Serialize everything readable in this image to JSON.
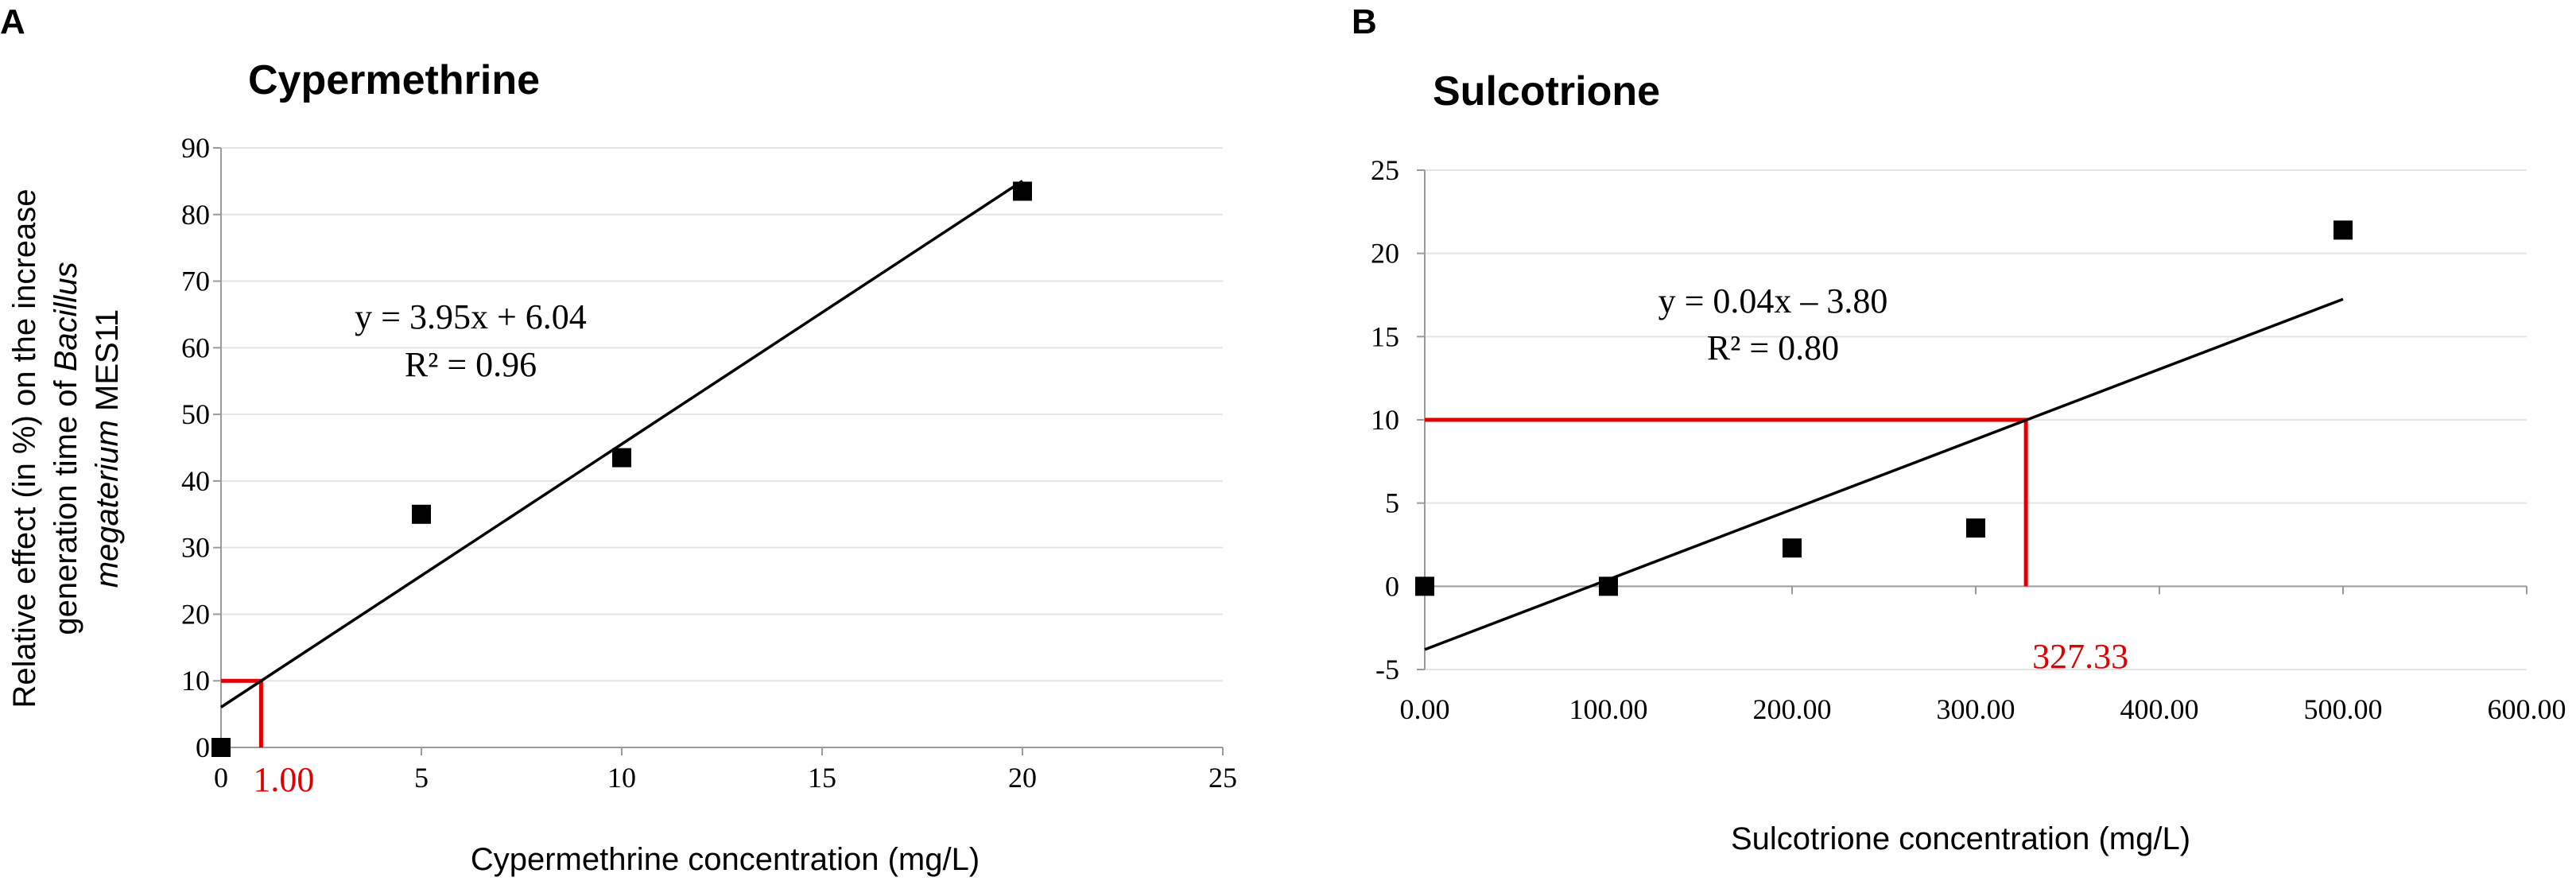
{
  "chart_data": [
    {
      "type": "scatter",
      "panel": "A",
      "title": "Cypermethrine",
      "xlabel": "Cypermethrine concentration (mg/L)",
      "ylabel_parts": [
        {
          "text": "Relative effect (in %) on the increase",
          "italic": false
        },
        {
          "text": "generation time of ",
          "italic": false
        },
        {
          "text": "Bacillus",
          "italic": true
        },
        {
          "text": "megaterium",
          "italic": true
        },
        {
          "text": " MES11",
          "italic": false
        }
      ],
      "ylabel_lines": [
        [
          "Relative effect (in %) on the increase"
        ],
        [
          "generation time of ",
          "Bacillus"
        ],
        [
          "megaterium",
          " MES11"
        ]
      ],
      "xlim": [
        0,
        25
      ],
      "ylim": [
        0,
        90
      ],
      "xticks": [
        0,
        5,
        10,
        15,
        20,
        25
      ],
      "xtick_labels": [
        "0",
        "5",
        "10",
        "15",
        "20",
        "25"
      ],
      "yticks": [
        0,
        10,
        20,
        30,
        40,
        50,
        60,
        70,
        80,
        90
      ],
      "ytick_labels": [
        "0",
        "10",
        "20",
        "30",
        "40",
        "50",
        "60",
        "70",
        "80",
        "90"
      ],
      "grid": true,
      "points": [
        {
          "x": 0,
          "y": 0
        },
        {
          "x": 5,
          "y": 35
        },
        {
          "x": 10,
          "y": 43.5
        },
        {
          "x": 20,
          "y": 83.5
        }
      ],
      "trendline": {
        "slope": 3.95,
        "intercept": 6.04,
        "x_range": [
          0,
          20
        ]
      },
      "equation": "y = 3.95x + 6.04",
      "r2": "R² = 0.96",
      "threshold": {
        "y": 10,
        "x": 1.0,
        "label": "1.00"
      },
      "colors": {
        "line": "#000000",
        "marker": "#000000",
        "threshold": "#e00000",
        "grid": "#e4e4e4"
      }
    },
    {
      "type": "scatter",
      "panel": "B",
      "title": "Sulcotrione",
      "xlabel": "Sulcotrione concentration (mg/L)",
      "xlim": [
        0,
        600
      ],
      "ylim": [
        -5,
        25
      ],
      "xticks": [
        0,
        100,
        200,
        300,
        400,
        500,
        600
      ],
      "xtick_labels": [
        "0.00",
        "100.00",
        "200.00",
        "300.00",
        "400.00",
        "500.00",
        "600.00"
      ],
      "yticks": [
        -5,
        0,
        5,
        10,
        15,
        20,
        25
      ],
      "ytick_labels": [
        "-5",
        "0",
        "5",
        "10",
        "15",
        "20",
        "25"
      ],
      "grid": true,
      "points": [
        {
          "x": 0,
          "y": 0
        },
        {
          "x": 100,
          "y": 0
        },
        {
          "x": 200,
          "y": 2.3
        },
        {
          "x": 300,
          "y": 3.5
        },
        {
          "x": 500,
          "y": 21.4
        }
      ],
      "trendline": {
        "slope": 0.0421,
        "intercept": -3.8,
        "x_range": [
          0,
          500
        ]
      },
      "equation": "y = 0.04x – 3.80",
      "r2": "R² = 0.80",
      "threshold": {
        "y": 10,
        "x": 327.33,
        "label": "327.33"
      },
      "colors": {
        "line": "#000000",
        "marker": "#000000",
        "threshold": "#e00000",
        "grid": "#e4e4e4"
      }
    }
  ]
}
